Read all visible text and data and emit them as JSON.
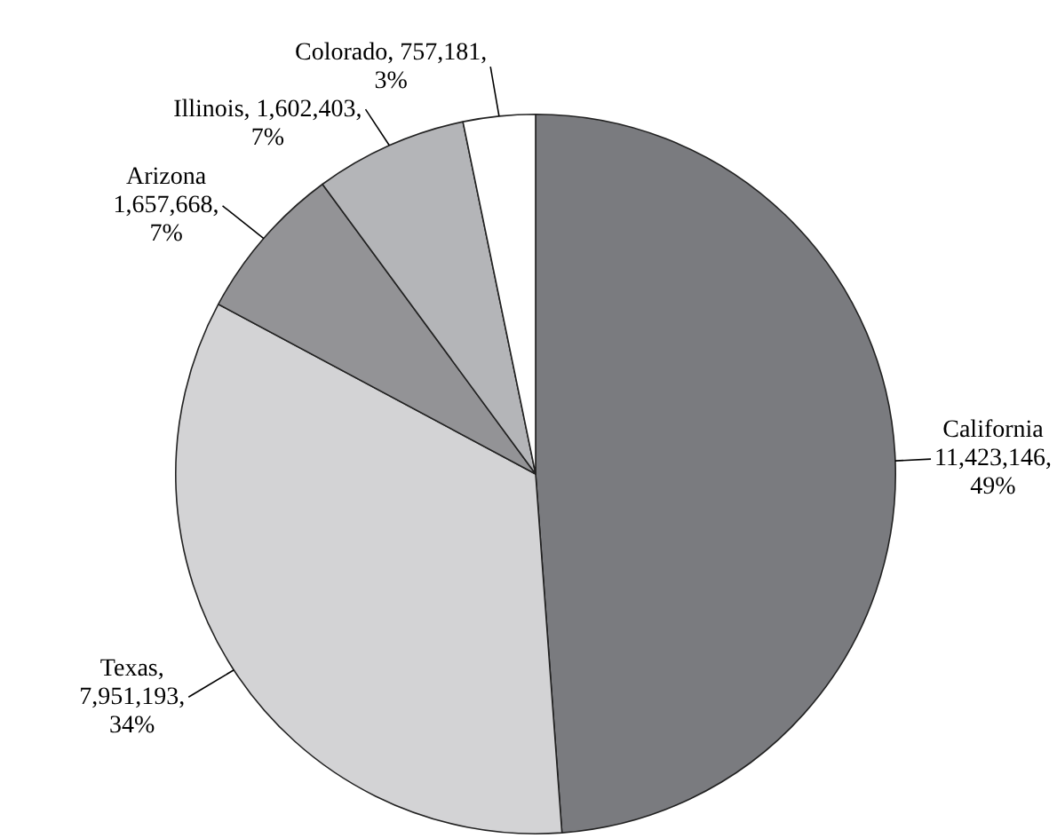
{
  "chart_data": {
    "type": "pie",
    "categories": [
      "California",
      "Texas",
      "Arizona",
      "Illinois",
      "Colorado"
    ],
    "values": [
      11423146,
      7951193,
      1657668,
      1602403,
      757181
    ],
    "value_labels": [
      "\n11,423,146,\n49%",
      ",\n7,951,193,\n34%",
      "\n1,657,668,\n7%",
      ", 1,602,403,\n7%",
      ", 757,181,\n3%"
    ],
    "colors": [
      "#7a7b7f",
      "#d3d3d5",
      "#939396",
      "#b4b5b8",
      "#ffffff"
    ],
    "legend": false
  }
}
